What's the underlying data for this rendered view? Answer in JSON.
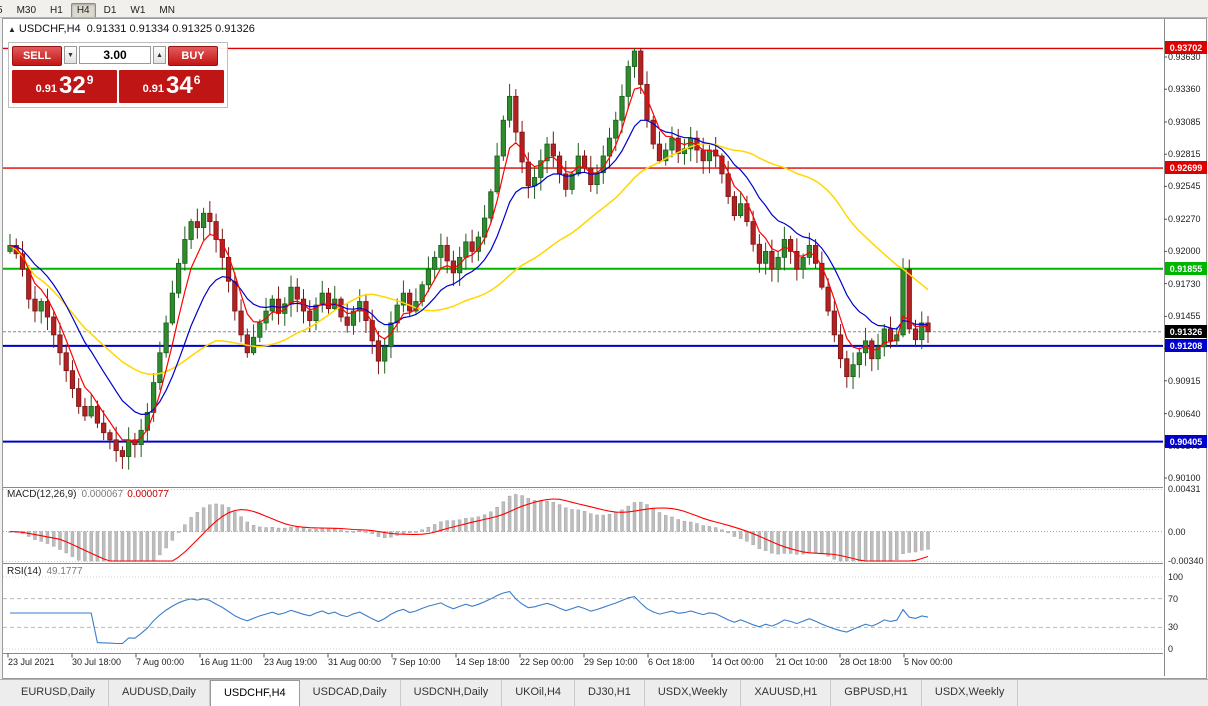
{
  "toolbar": {
    "buttons": [
      "5",
      "M30",
      "H1",
      "H4",
      "D1",
      "W1",
      "MN"
    ],
    "active": "H4"
  },
  "header": {
    "symbol_period": "USDCHF,H4",
    "ohlc": "0.91331 0.91334 0.91325 0.91326"
  },
  "trade_panel": {
    "sell_label": "SELL",
    "buy_label": "BUY",
    "volume": "3.00",
    "sell_price_prefix": "0.91",
    "sell_price_big": "32",
    "sell_price_sup": "9",
    "buy_price_prefix": "0.91",
    "buy_price_big": "34",
    "buy_price_sup": "6"
  },
  "indicators": {
    "macd_label": "MACD(12,26,9)",
    "macd_value_main": "0.000067",
    "macd_value_signal": "0.000077",
    "rsi_label": "RSI(14)",
    "rsi_value": "49.1777"
  },
  "chart_data": {
    "type": "candlestick",
    "symbol": "USDCHF",
    "period": "H4",
    "y_axis": {
      "top_price": 0.9363,
      "bottom_price": 0.901
    },
    "y_ticks": [
      "0.93630",
      "0.93360",
      "0.93085",
      "0.92815",
      "0.92545",
      "0.92270",
      "0.92000",
      "0.91730",
      "0.91455",
      "0.91185",
      "0.90915",
      "0.90640",
      "0.90370",
      "0.90100"
    ],
    "x_labels": [
      "23 Jul 2021",
      "30 Jul 18:00",
      "7 Aug 00:00",
      "16 Aug 11:00",
      "23 Aug 19:00",
      "31 Aug 00:00",
      "7 Sep 10:00",
      "14 Sep 18:00",
      "22 Sep 00:00",
      "29 Sep 10:00",
      "6 Oct 18:00",
      "14 Oct 00:00",
      "21 Oct 10:00",
      "28 Oct 18:00",
      "5 Nov 00:00"
    ],
    "levels": [
      {
        "price": 0.93702,
        "label": "0.93702",
        "color": "#dd0000",
        "width": 1.4
      },
      {
        "price": 0.92699,
        "label": "0.92699",
        "color": "#dd0000",
        "width": 1.4
      },
      {
        "price": 0.91855,
        "label": "0.91855",
        "color": "#00b400",
        "width": 2
      },
      {
        "price": 0.91208,
        "label": "0.91208",
        "color": "#0000cc",
        "width": 2
      },
      {
        "price": 0.90405,
        "label": "0.90405",
        "color": "#0000cc",
        "width": 2
      }
    ],
    "current_price": {
      "value": 0.91326,
      "label": "0.91326",
      "bg": "#000000"
    },
    "candle_colors": {
      "up_fill": "#2e8b2e",
      "up_stroke": "#1c5c1c",
      "down_fill": "#b22222",
      "down_stroke": "#7a1515"
    },
    "ma_colors": {
      "fast": "#ff0000",
      "mid": "#0000cd",
      "slow": "#ffd700"
    },
    "closes": [
      0.9205,
      0.9198,
      0.9185,
      0.916,
      0.915,
      0.9158,
      0.9145,
      0.913,
      0.9115,
      0.91,
      0.9085,
      0.907,
      0.9062,
      0.907,
      0.9056,
      0.9048,
      0.9042,
      0.9033,
      0.9028,
      0.9042,
      0.9038,
      0.905,
      0.9065,
      0.909,
      0.9115,
      0.914,
      0.9165,
      0.919,
      0.921,
      0.9225,
      0.922,
      0.9232,
      0.9225,
      0.921,
      0.9195,
      0.9175,
      0.915,
      0.913,
      0.9115,
      0.9128,
      0.914,
      0.915,
      0.916,
      0.9148,
      0.9156,
      0.917,
      0.916,
      0.915,
      0.9142,
      0.9155,
      0.9165,
      0.9152,
      0.916,
      0.9145,
      0.9138,
      0.915,
      0.9158,
      0.9142,
      0.9125,
      0.9108,
      0.912,
      0.914,
      0.9155,
      0.9165,
      0.915,
      0.9158,
      0.9172,
      0.9185,
      0.9195,
      0.9205,
      0.9192,
      0.9182,
      0.9195,
      0.9208,
      0.92,
      0.9212,
      0.9228,
      0.925,
      0.928,
      0.931,
      0.933,
      0.93,
      0.9275,
      0.9255,
      0.9262,
      0.9276,
      0.929,
      0.928,
      0.9265,
      0.9252,
      0.9265,
      0.928,
      0.927,
      0.9256,
      0.9266,
      0.928,
      0.9295,
      0.931,
      0.933,
      0.9355,
      0.9368,
      0.934,
      0.931,
      0.929,
      0.9276,
      0.9285,
      0.9295,
      0.9282,
      0.9286,
      0.9295,
      0.9285,
      0.9276,
      0.9285,
      0.928,
      0.9265,
      0.9246,
      0.923,
      0.924,
      0.9225,
      0.9206,
      0.919,
      0.92,
      0.9185,
      0.9195,
      0.921,
      0.92,
      0.9185,
      0.9195,
      0.9205,
      0.919,
      0.917,
      0.915,
      0.913,
      0.911,
      0.9095,
      0.9105,
      0.9115,
      0.9125,
      0.911,
      0.912,
      0.9135,
      0.9125,
      0.913,
      0.9185,
      0.9135,
      0.9126,
      0.914,
      0.91326
    ],
    "macd": {
      "axis": [
        "0.00431",
        "0.00",
        "-0.00340"
      ],
      "histogram_color": "#bdbdbd",
      "signal_color": "#ff0000"
    },
    "rsi": {
      "axis": [
        "100",
        "70",
        "30",
        "0"
      ],
      "levels": [
        70,
        30
      ],
      "line_color": "#3a7ecb"
    }
  },
  "tabs": {
    "items": [
      "EURUSD,Daily",
      "AUDUSD,Daily",
      "USDCHF,H4",
      "USDCAD,Daily",
      "USDCNH,Daily",
      "UKOil,H4",
      "DJ30,H1",
      "USDX,Weekly",
      "XAUUSD,H1",
      "GBPUSD,H1",
      "USDX,Weekly"
    ],
    "active_index": 2
  }
}
